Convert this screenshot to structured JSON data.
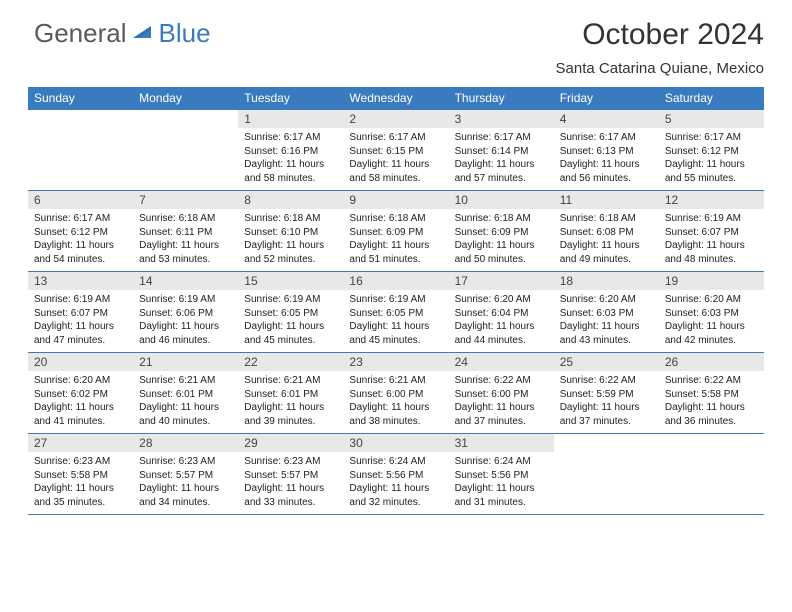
{
  "logo": {
    "part1": "General",
    "part2": "Blue"
  },
  "title": "October 2024",
  "location": "Santa Catarina Quiane, Mexico",
  "colors": {
    "header_bg": "#3a7bbf",
    "header_fg": "#ffffff",
    "daynum_bg": "#e8e8e8",
    "rule": "#3a7bbf",
    "text": "#222222"
  },
  "weekdays": [
    "Sunday",
    "Monday",
    "Tuesday",
    "Wednesday",
    "Thursday",
    "Friday",
    "Saturday"
  ],
  "weeks": [
    [
      null,
      null,
      {
        "n": "1",
        "sr": "6:17 AM",
        "ss": "6:16 PM",
        "dl": "11 hours and 58 minutes."
      },
      {
        "n": "2",
        "sr": "6:17 AM",
        "ss": "6:15 PM",
        "dl": "11 hours and 58 minutes."
      },
      {
        "n": "3",
        "sr": "6:17 AM",
        "ss": "6:14 PM",
        "dl": "11 hours and 57 minutes."
      },
      {
        "n": "4",
        "sr": "6:17 AM",
        "ss": "6:13 PM",
        "dl": "11 hours and 56 minutes."
      },
      {
        "n": "5",
        "sr": "6:17 AM",
        "ss": "6:12 PM",
        "dl": "11 hours and 55 minutes."
      }
    ],
    [
      {
        "n": "6",
        "sr": "6:17 AM",
        "ss": "6:12 PM",
        "dl": "11 hours and 54 minutes."
      },
      {
        "n": "7",
        "sr": "6:18 AM",
        "ss": "6:11 PM",
        "dl": "11 hours and 53 minutes."
      },
      {
        "n": "8",
        "sr": "6:18 AM",
        "ss": "6:10 PM",
        "dl": "11 hours and 52 minutes."
      },
      {
        "n": "9",
        "sr": "6:18 AM",
        "ss": "6:09 PM",
        "dl": "11 hours and 51 minutes."
      },
      {
        "n": "10",
        "sr": "6:18 AM",
        "ss": "6:09 PM",
        "dl": "11 hours and 50 minutes."
      },
      {
        "n": "11",
        "sr": "6:18 AM",
        "ss": "6:08 PM",
        "dl": "11 hours and 49 minutes."
      },
      {
        "n": "12",
        "sr": "6:19 AM",
        "ss": "6:07 PM",
        "dl": "11 hours and 48 minutes."
      }
    ],
    [
      {
        "n": "13",
        "sr": "6:19 AM",
        "ss": "6:07 PM",
        "dl": "11 hours and 47 minutes."
      },
      {
        "n": "14",
        "sr": "6:19 AM",
        "ss": "6:06 PM",
        "dl": "11 hours and 46 minutes."
      },
      {
        "n": "15",
        "sr": "6:19 AM",
        "ss": "6:05 PM",
        "dl": "11 hours and 45 minutes."
      },
      {
        "n": "16",
        "sr": "6:19 AM",
        "ss": "6:05 PM",
        "dl": "11 hours and 45 minutes."
      },
      {
        "n": "17",
        "sr": "6:20 AM",
        "ss": "6:04 PM",
        "dl": "11 hours and 44 minutes."
      },
      {
        "n": "18",
        "sr": "6:20 AM",
        "ss": "6:03 PM",
        "dl": "11 hours and 43 minutes."
      },
      {
        "n": "19",
        "sr": "6:20 AM",
        "ss": "6:03 PM",
        "dl": "11 hours and 42 minutes."
      }
    ],
    [
      {
        "n": "20",
        "sr": "6:20 AM",
        "ss": "6:02 PM",
        "dl": "11 hours and 41 minutes."
      },
      {
        "n": "21",
        "sr": "6:21 AM",
        "ss": "6:01 PM",
        "dl": "11 hours and 40 minutes."
      },
      {
        "n": "22",
        "sr": "6:21 AM",
        "ss": "6:01 PM",
        "dl": "11 hours and 39 minutes."
      },
      {
        "n": "23",
        "sr": "6:21 AM",
        "ss": "6:00 PM",
        "dl": "11 hours and 38 minutes."
      },
      {
        "n": "24",
        "sr": "6:22 AM",
        "ss": "6:00 PM",
        "dl": "11 hours and 37 minutes."
      },
      {
        "n": "25",
        "sr": "6:22 AM",
        "ss": "5:59 PM",
        "dl": "11 hours and 37 minutes."
      },
      {
        "n": "26",
        "sr": "6:22 AM",
        "ss": "5:58 PM",
        "dl": "11 hours and 36 minutes."
      }
    ],
    [
      {
        "n": "27",
        "sr": "6:23 AM",
        "ss": "5:58 PM",
        "dl": "11 hours and 35 minutes."
      },
      {
        "n": "28",
        "sr": "6:23 AM",
        "ss": "5:57 PM",
        "dl": "11 hours and 34 minutes."
      },
      {
        "n": "29",
        "sr": "6:23 AM",
        "ss": "5:57 PM",
        "dl": "11 hours and 33 minutes."
      },
      {
        "n": "30",
        "sr": "6:24 AM",
        "ss": "5:56 PM",
        "dl": "11 hours and 32 minutes."
      },
      {
        "n": "31",
        "sr": "6:24 AM",
        "ss": "5:56 PM",
        "dl": "11 hours and 31 minutes."
      },
      null,
      null
    ]
  ],
  "labels": {
    "sunrise": "Sunrise:",
    "sunset": "Sunset:",
    "daylight": "Daylight:"
  }
}
